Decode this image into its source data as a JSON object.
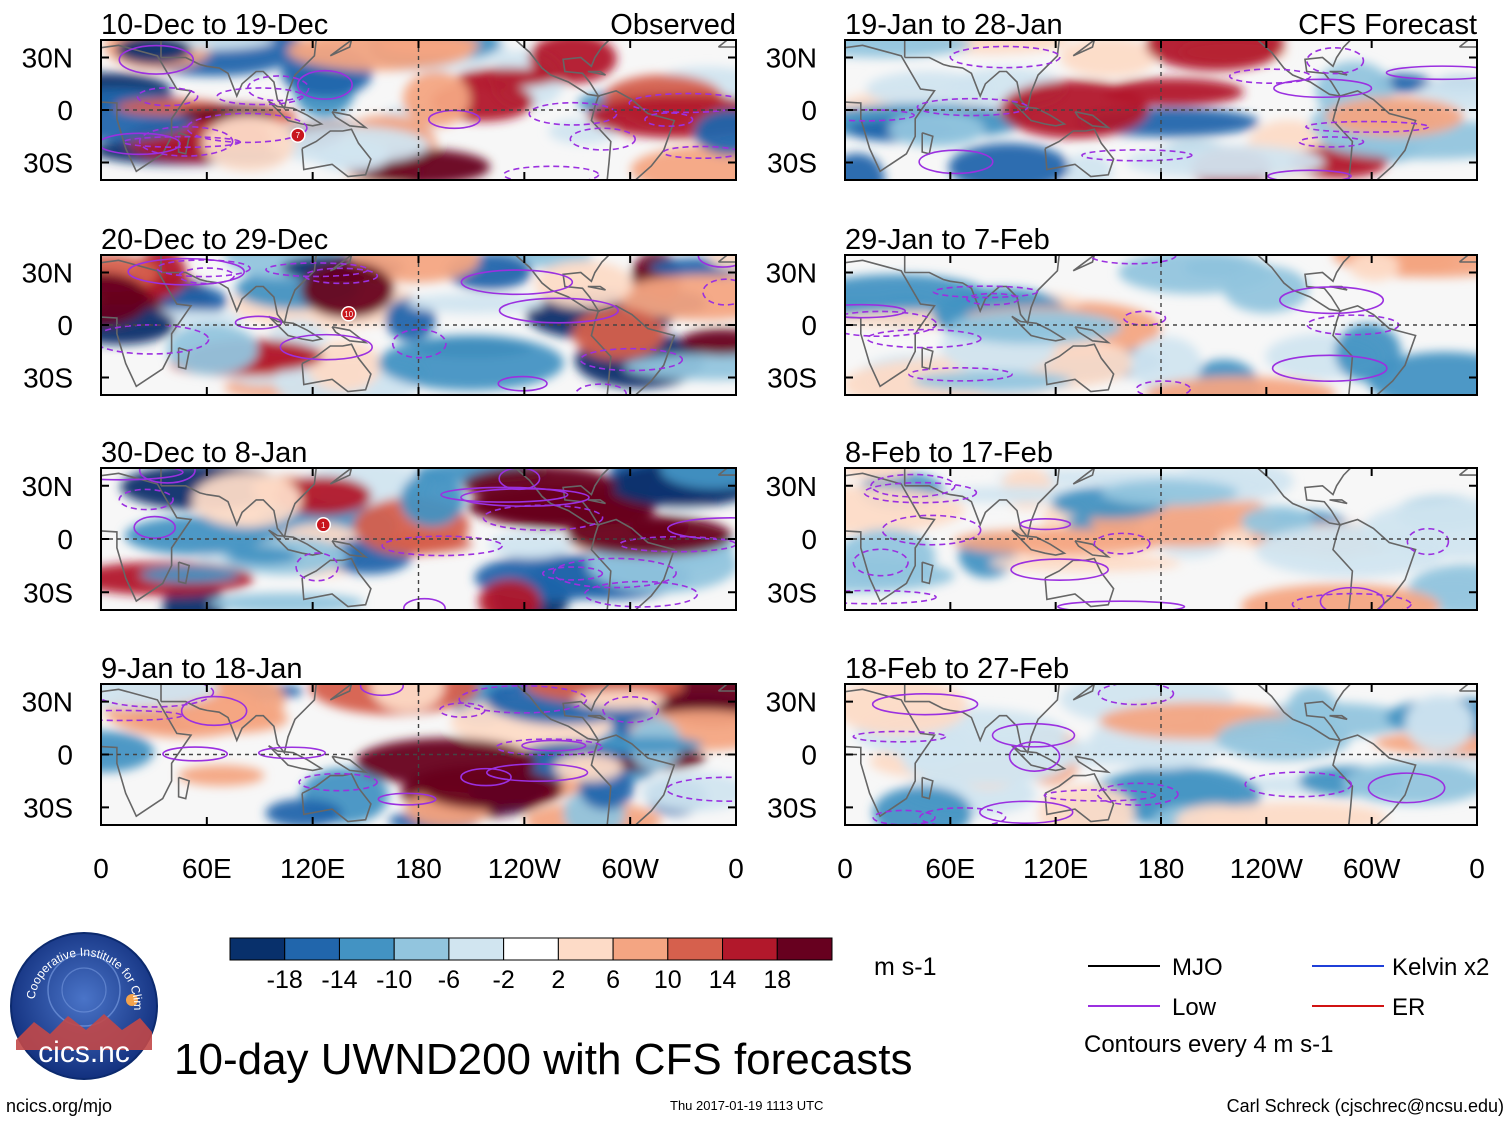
{
  "chart_data": {
    "type": "heatmap",
    "title": "10-day UWND200 with CFS forecasts",
    "variable": "UWND200",
    "units": "m s-1",
    "x_ticks": [
      "0",
      "60E",
      "120E",
      "180",
      "120W",
      "60W",
      "0"
    ],
    "y_ticks": [
      "30N",
      "0",
      "30S"
    ],
    "columns": [
      {
        "label": "Observed",
        "panels": [
          {
            "period": "10-Dec to 19-Dec",
            "cyclones": [
              "7"
            ]
          },
          {
            "period": "20-Dec to 29-Dec",
            "cyclones": [
              "10"
            ]
          },
          {
            "period": "30-Dec to 8-Jan",
            "cyclones": [
              "1"
            ]
          },
          {
            "period": "9-Jan to 18-Jan",
            "cyclones": []
          }
        ]
      },
      {
        "label": "CFS Forecast",
        "panels": [
          {
            "period": "19-Jan to 28-Jan",
            "cyclones": []
          },
          {
            "period": "29-Jan to 7-Feb",
            "cyclones": []
          },
          {
            "period": "8-Feb to 17-Feb",
            "cyclones": []
          },
          {
            "period": "18-Feb to 27-Feb",
            "cyclones": []
          }
        ]
      }
    ],
    "colorbar": {
      "tick_labels": [
        "-18",
        "-14",
        "-10",
        "-6",
        "-2",
        "2",
        "6",
        "10",
        "14",
        "18"
      ],
      "colors": [
        "#08306b",
        "#2166ac",
        "#4393c3",
        "#92c5de",
        "#d1e5f0",
        "#ffffff",
        "#fddbc7",
        "#f4a582",
        "#d6604d",
        "#b2182b",
        "#67001f"
      ],
      "units_label": "m s-1"
    },
    "legend": [
      {
        "label": "MJO",
        "color": "#000000"
      },
      {
        "label": "Kelvin x2",
        "color": "#1f3fd8"
      },
      {
        "label": "Low",
        "color": "#9b30e0"
      },
      {
        "label": "ER",
        "color": "#d11313"
      }
    ],
    "contour_note": "Contours every 4 m s-1"
  },
  "logo": {
    "name": "cics.nc",
    "ring_text": "Cooperative Institute for Climate and Satellites"
  },
  "footer": {
    "url": "ncics.org/mjo",
    "timestamp": "Thu 2017-01-19 1113 UTC",
    "credit": "Carl Schreck (cjschrec@ncsu.edu)"
  }
}
